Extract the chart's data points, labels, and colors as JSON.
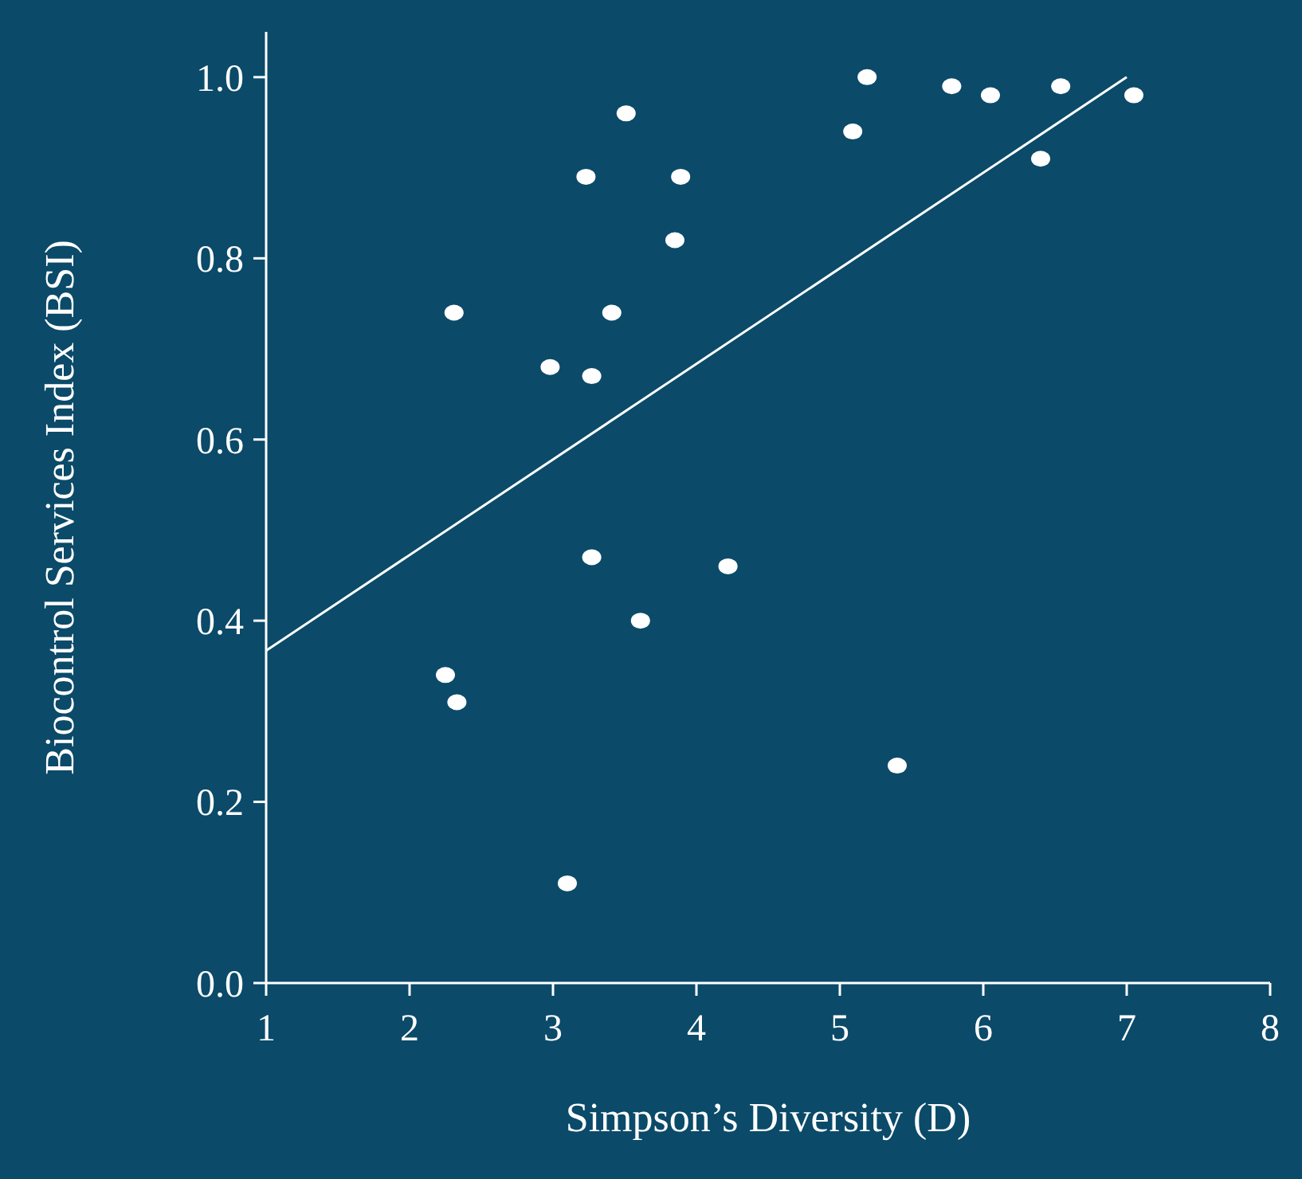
{
  "chart_data": {
    "type": "scatter",
    "xlabel": "Simpson’s Diversity (D)",
    "ylabel": "Biocontrol Services Index (BSI)",
    "xlim": [
      1,
      8
    ],
    "xticks": [
      1,
      2,
      3,
      4,
      5,
      6,
      7,
      8
    ],
    "ylim": [
      0,
      1.05
    ],
    "yticks": [
      {
        "value": 0,
        "label": "0.0"
      },
      0.2,
      0.4,
      0.6,
      0.8,
      {
        "value": 1,
        "label": "1.0"
      }
    ],
    "grid": false,
    "series": [
      {
        "marker": "circle",
        "color": "#ffffff",
        "x": [
          2.25,
          2.33,
          2.31,
          2.98,
          3.23,
          3.27,
          3.27,
          3.1,
          3.41,
          3.51,
          3.61,
          3.85,
          3.89,
          4.22,
          5.09,
          5.19,
          5.4,
          5.78,
          6.05,
          6.4,
          6.54,
          7.05
        ],
        "values": [
          0.34,
          0.31,
          0.74,
          0.68,
          0.89,
          0.67,
          0.47,
          0.11,
          0.74,
          0.96,
          0.4,
          0.82,
          0.89,
          0.46,
          0.94,
          1.0,
          0.24,
          0.99,
          0.98,
          0.91,
          0.99,
          0.98
        ]
      },
      {
        "type": "line",
        "color": "#ffffff",
        "x": [
          1,
          7
        ],
        "values": [
          0.367,
          1.0
        ]
      }
    ]
  }
}
